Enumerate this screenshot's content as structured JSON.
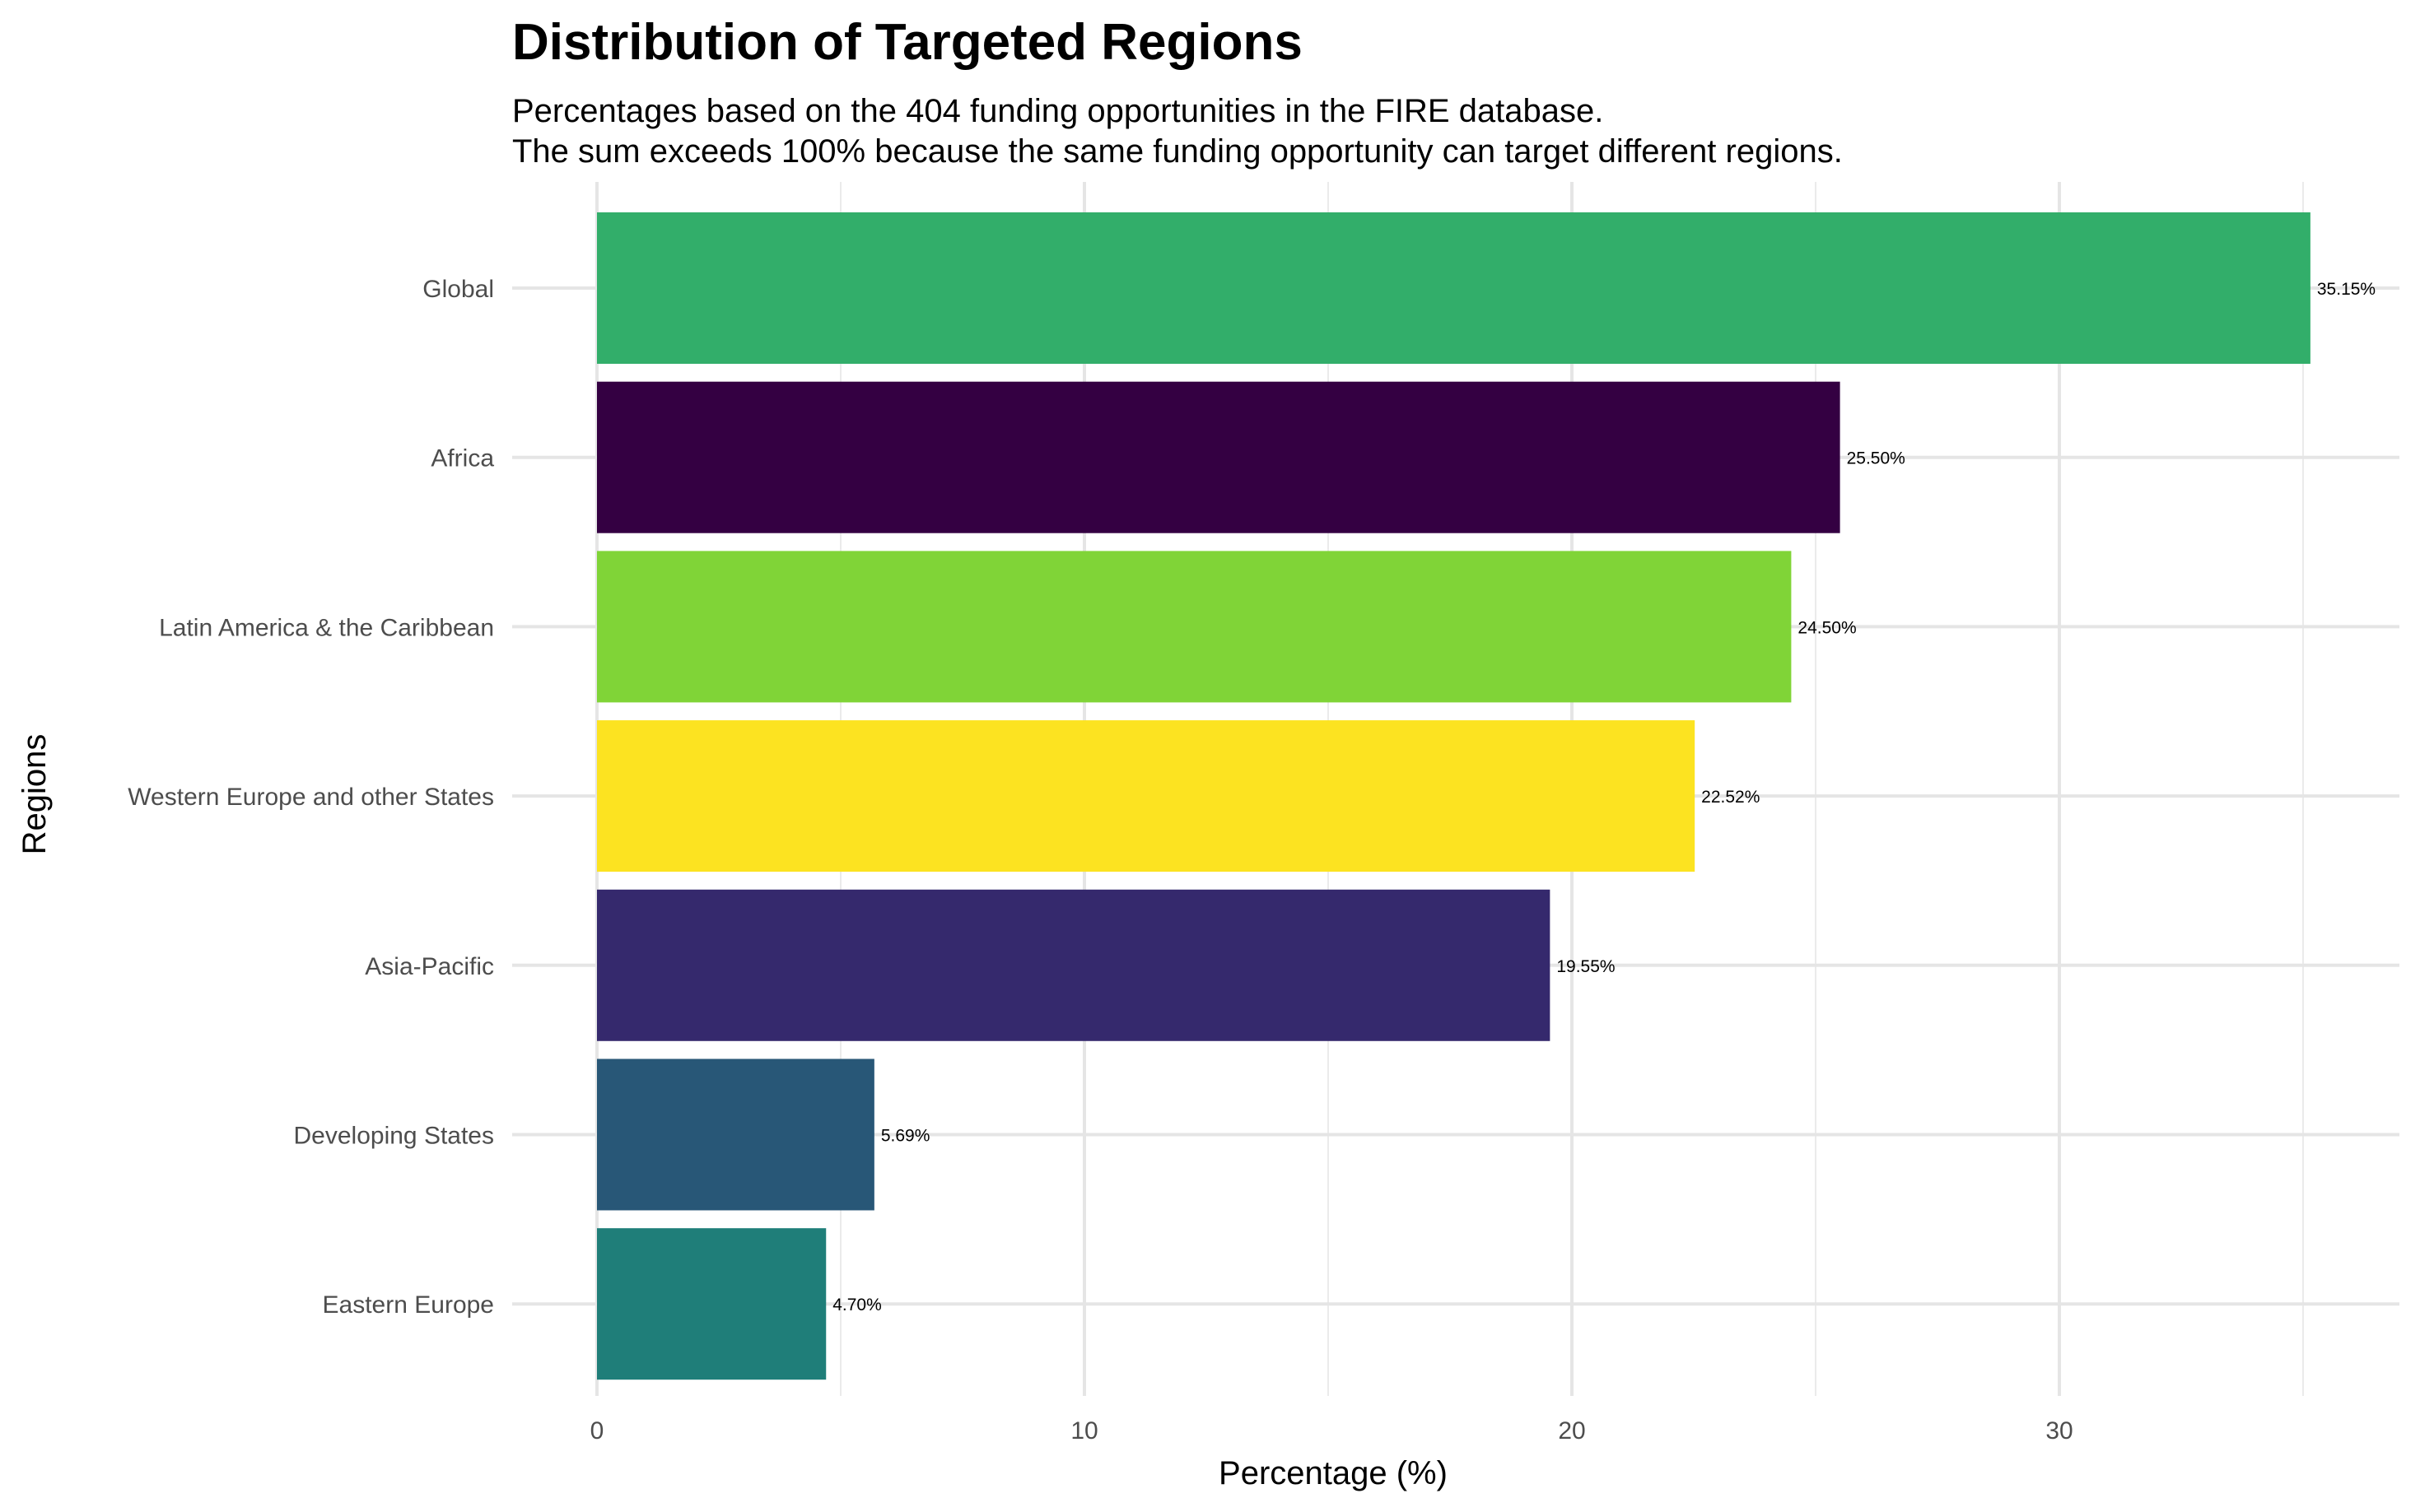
{
  "chart_data": {
    "type": "bar",
    "orientation": "horizontal",
    "title": "Distribution of Targeted Regions",
    "subtitle": [
      "Percentages based on the 404 funding opportunities in the FIRE database.",
      "The sum exceeds 100% because the same funding opportunity can target different regions."
    ],
    "xlabel": "Percentage (%)",
    "ylabel": "Regions",
    "xlim": [
      0,
      36.9
    ],
    "xticks": [
      0,
      10,
      20,
      30
    ],
    "grid": true,
    "categories": [
      "Global",
      "Africa",
      "Latin America & the Caribbean",
      "Western Europe and other States",
      "Asia-Pacific",
      "Developing States",
      "Eastern Europe"
    ],
    "values": [
      35.15,
      25.5,
      24.5,
      22.52,
      19.55,
      5.69,
      4.7
    ],
    "labels": [
      "35.15%",
      "25.50%",
      "24.50%",
      "22.52%",
      "19.55%",
      "5.69%",
      "4.70%"
    ],
    "colors": [
      "#32AE6A",
      "#340042",
      "#80D437",
      "#FCE321",
      "#35296D",
      "#285777",
      "#1F7E79"
    ]
  }
}
